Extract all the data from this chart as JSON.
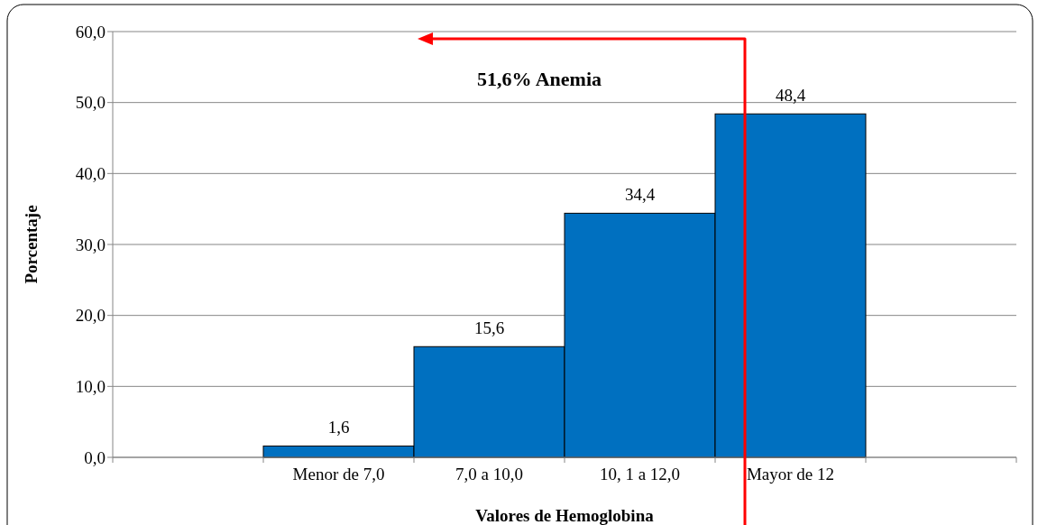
{
  "chart_data": {
    "type": "bar",
    "xlabel": "Valores de Hemoglobina",
    "ylabel": "Porcentaje",
    "categories": [
      null,
      "Menor de 7,0",
      "7,0 a 10,0",
      "10, 1 a 12,0",
      "Mayor de 12",
      null
    ],
    "values": [
      null,
      1.6,
      15.6,
      34.4,
      48.4,
      null
    ],
    "value_labels": [
      null,
      "1,6",
      "15,6",
      "34,4",
      "48,4",
      null
    ],
    "color": "#0070c0",
    "ylim": [
      0,
      60
    ],
    "yticks": [
      {
        "value": 0,
        "label": "0,0"
      },
      {
        "value": 10,
        "label": "10,0"
      },
      {
        "value": 20,
        "label": "20,0"
      },
      {
        "value": 30,
        "label": "30,0"
      },
      {
        "value": 40,
        "label": "40,0"
      },
      {
        "value": 50,
        "label": "50,0"
      },
      {
        "value": 60,
        "label": "60,0"
      }
    ],
    "grid": "y",
    "annotations": [
      "51,6% Anemia"
    ]
  }
}
